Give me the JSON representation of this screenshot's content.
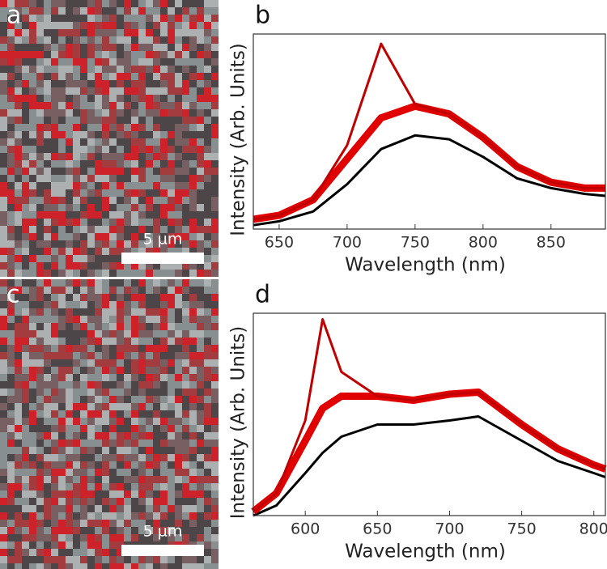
{
  "images": [
    {
      "panel_label": "a",
      "scale_bar": "5 µm"
    },
    {
      "panel_label": "c",
      "scale_bar": "5 µm"
    }
  ],
  "chart_data": [
    {
      "type": "line",
      "panel_label": "b",
      "xlabel": "Wavelength (nm)",
      "ylabel": "Intensity (Arb. Units)",
      "x": [
        631,
        650,
        675,
        700,
        725,
        750,
        775,
        800,
        825,
        850,
        875,
        890
      ],
      "series": [
        {
          "color": "#000000",
          "values": [
            0.02,
            0.04,
            0.09,
            0.23,
            0.41,
            0.48,
            0.46,
            0.37,
            0.26,
            0.21,
            0.18,
            0.17
          ]
        },
        {
          "color": "#e00000",
          "values": [
            0.05,
            0.07,
            0.15,
            0.36,
            0.57,
            0.63,
            0.59,
            0.47,
            0.32,
            0.24,
            0.21,
            0.21
          ]
        },
        {
          "color": "#c00000",
          "values": [
            0.05,
            0.07,
            0.15,
            0.43,
            0.95,
            0.64,
            0.59,
            0.47,
            0.32,
            0.24,
            0.21,
            0.21
          ]
        }
      ],
      "xlim": [
        631,
        890
      ],
      "xticks": [
        650,
        700,
        750,
        800,
        850
      ],
      "ylim": [
        0,
        1
      ]
    },
    {
      "type": "line",
      "panel_label": "d",
      "xlabel": "Wavelength (nm)",
      "ylabel": "Intensity (Arb. Units)",
      "x": [
        564,
        580,
        600,
        612,
        625,
        650,
        675,
        700,
        720,
        750,
        775,
        800,
        808
      ],
      "series": [
        {
          "color": "#000000",
          "values": [
            0.0,
            0.05,
            0.21,
            0.31,
            0.39,
            0.45,
            0.45,
            0.47,
            0.49,
            0.37,
            0.27,
            0.21,
            0.19
          ]
        },
        {
          "color": "#e00000",
          "values": [
            0.02,
            0.11,
            0.37,
            0.53,
            0.59,
            0.59,
            0.57,
            0.6,
            0.61,
            0.45,
            0.33,
            0.25,
            0.23
          ]
        },
        {
          "color": "#c00000",
          "values": [
            0.02,
            0.11,
            0.47,
            0.97,
            0.71,
            0.59,
            0.57,
            0.6,
            0.61,
            0.45,
            0.33,
            0.25,
            0.23
          ]
        }
      ],
      "xlim": [
        564,
        808
      ],
      "xticks": [
        600,
        650,
        700,
        750,
        800
      ],
      "ylim": [
        0,
        1
      ]
    }
  ]
}
